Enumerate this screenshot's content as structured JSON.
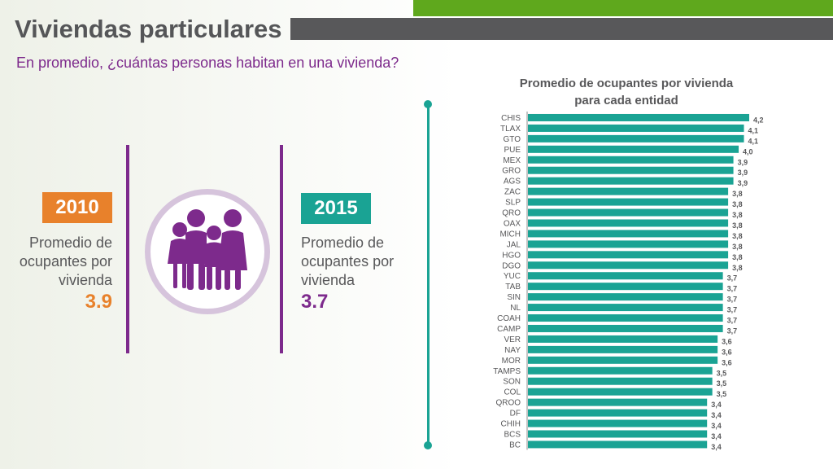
{
  "header": {
    "title": "Viviendas particulares",
    "subtitle": "En promedio, ¿cuántas personas habitan en una vivienda?"
  },
  "colors": {
    "accent_green": "#5fa81d",
    "purple": "#7d2a8c",
    "orange": "#e8812b",
    "teal": "#1aa394",
    "gray": "#58585a"
  },
  "left_panel": {
    "year_2010": {
      "year": "2010",
      "desc_line1": "Promedio de",
      "desc_line2": "ocupantes por",
      "desc_line3": "vivienda",
      "value": "3.9"
    },
    "year_2015": {
      "year": "2015",
      "desc_line1": "Promedio de",
      "desc_line2": "ocupantes por",
      "desc_line3": "vivienda",
      "value": "3.7"
    },
    "icon": "family-icon"
  },
  "chart_data": {
    "type": "bar",
    "orientation": "horizontal",
    "title_line1": "Promedio de ocupantes por vivienda",
    "title_line2": "para cada entidad",
    "categories": [
      "CHIS",
      "TLAX",
      "GTO",
      "PUE",
      "MEX",
      "GRO",
      "AGS",
      "ZAC",
      "SLP",
      "QRO",
      "OAX",
      "MICH",
      "JAL",
      "HGO",
      "DGO",
      "YUC",
      "TAB",
      "SIN",
      "NL",
      "COAH",
      "CAMP",
      "VER",
      "NAY",
      "MOR",
      "TAMPS",
      "SON",
      "COL",
      "QROO",
      "DF",
      "CHIH",
      "BCS",
      "BC"
    ],
    "values": [
      4.2,
      4.1,
      4.1,
      4.0,
      3.9,
      3.9,
      3.9,
      3.8,
      3.8,
      3.8,
      3.8,
      3.8,
      3.8,
      3.8,
      3.8,
      3.7,
      3.7,
      3.7,
      3.7,
      3.7,
      3.7,
      3.6,
      3.6,
      3.6,
      3.5,
      3.5,
      3.5,
      3.4,
      3.4,
      3.4,
      3.4,
      3.4
    ],
    "value_labels": [
      "4,2",
      "4,1",
      "4,1",
      "4,0",
      "3,9",
      "3,9",
      "3,9",
      "3,8",
      "3,8",
      "3,8",
      "3,8",
      "3,8",
      "3,8",
      "3,8",
      "3,8",
      "3,7",
      "3,7",
      "3,7",
      "3,7",
      "3,7",
      "3,7",
      "3,6",
      "3,6",
      "3,6",
      "3,5",
      "3,5",
      "3,5",
      "3,4",
      "3,4",
      "3,4",
      "3,4",
      "3,4"
    ],
    "xlim": [
      0,
      4.2
    ],
    "bar_color": "#1aa394"
  }
}
